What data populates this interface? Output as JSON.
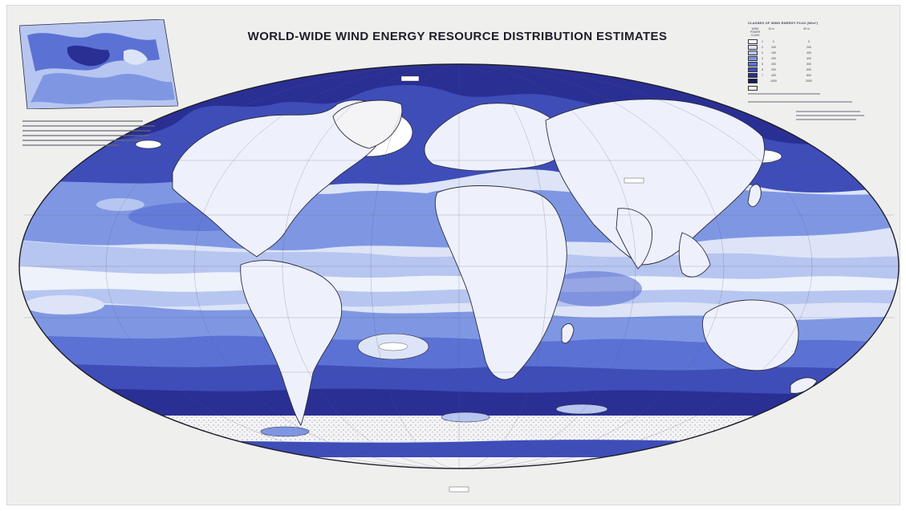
{
  "map": {
    "title": "WORLD-WIDE WIND ENERGY RESOURCE DISTRIBUTION ESTIMATES",
    "colors": {
      "class1": "#ffffff",
      "class2": "#dde4f7",
      "class3": "#b7c6f0",
      "class4": "#7f97e3",
      "class5": "#5b72d4",
      "class6": "#3e4db8",
      "class7": "#2a2f94",
      "land_outline": "#2b2b40",
      "background": "#efefee"
    },
    "legend": {
      "title": "CLASSES OF WIND ENERGY FLUX (W/m²)",
      "columns": [
        "WIND POWER CLASS",
        "10 m",
        "",
        "50 m",
        ""
      ],
      "rows": [
        {
          "class": "1",
          "v1": "0",
          "v2": "",
          "v3": "0",
          "v4": ""
        },
        {
          "class": "2",
          "v1": "100",
          "v2": "",
          "v3": "200",
          "v4": ""
        },
        {
          "class": "3",
          "v1": "150",
          "v2": "",
          "v3": "300",
          "v4": ""
        },
        {
          "class": "4",
          "v1": "200",
          "v2": "",
          "v3": "400",
          "v4": ""
        },
        {
          "class": "5",
          "v1": "250",
          "v2": "",
          "v3": "500",
          "v4": ""
        },
        {
          "class": "6",
          "v1": "300",
          "v2": "",
          "v3": "600",
          "v4": ""
        },
        {
          "class": "7",
          "v1": "400",
          "v2": "",
          "v3": "800",
          "v4": ""
        },
        {
          "class": "",
          "v1": "1000",
          "v2": "",
          "v3": "2000",
          "v4": ""
        }
      ],
      "notes": [
        "",
        "",
        "",
        ""
      ]
    },
    "inset_caption": [
      "",
      "",
      "",
      "",
      ""
    ],
    "region_labels": [
      "",
      "",
      ""
    ]
  }
}
